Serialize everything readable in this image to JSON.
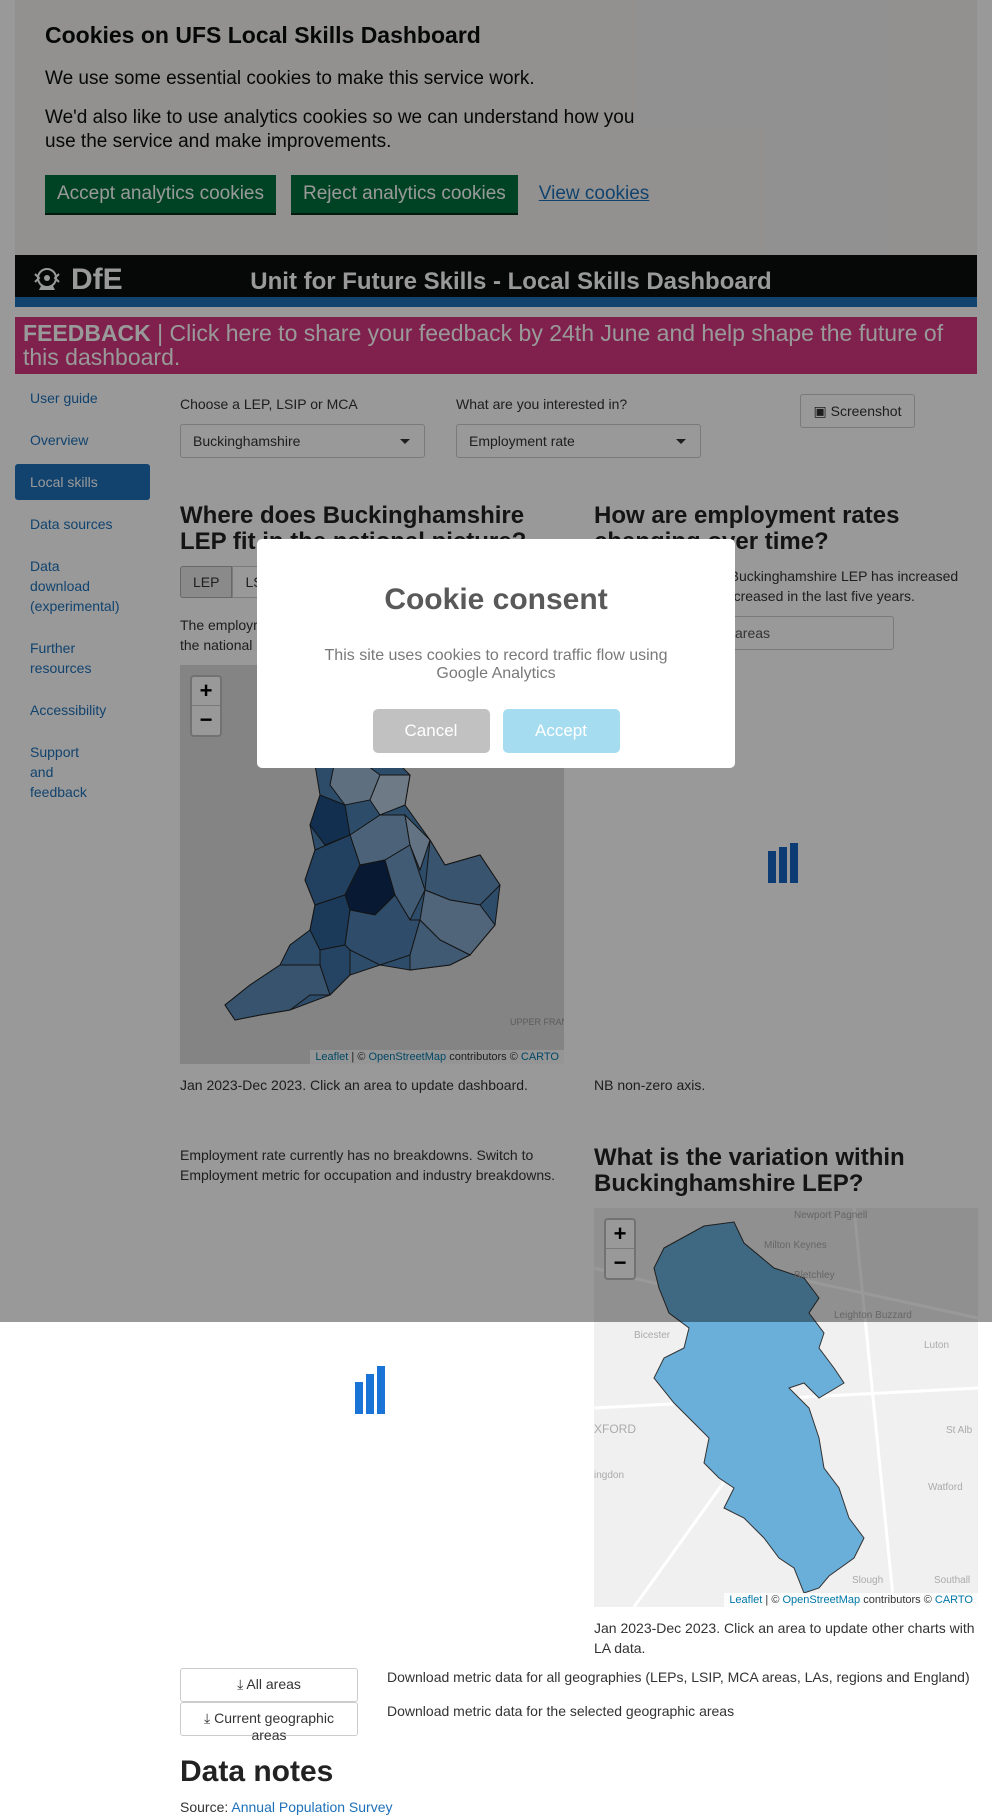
{
  "cookie_banner": {
    "title": "Cookies on UFS Local Skills Dashboard",
    "p1": "We use some essential cookies to make this service work.",
    "p2": "We'd also like to use analytics cookies so we can understand how you use the service and make improvements.",
    "accept": "Accept analytics cookies",
    "reject": "Reject analytics cookies",
    "view": "View cookies"
  },
  "header": {
    "logo": "DfE",
    "title": "Unit for Future Skills - Local Skills Dashboard"
  },
  "feedback": {
    "bold": "FEEDBACK",
    "text": " | Click here to share your feedback by 24th June and help shape the future of this dashboard."
  },
  "sidebar": {
    "items": [
      "User guide",
      "Overview",
      "Local skills",
      "Data sources",
      "Data download (experimental)",
      "Further resources",
      "Accessibility",
      "Support and feedback"
    ],
    "active": "Local skills"
  },
  "filters": {
    "geo_label": "Choose a LEP, LSIP or MCA",
    "geo_value": "Buckinghamshire",
    "metric_label": "What are you interested in?",
    "metric_value": "Employment rate",
    "screenshot": "Screenshot"
  },
  "national": {
    "title": "Where does Buckinghamshire LEP fit in the national picture?",
    "tab_lep": "LEP",
    "tab_ls": "LS",
    "text": "The employm... the national",
    "text_line1": "The employm",
    "text_line2": "the national",
    "caption": "Jan 2023-Dec 2023. Click an area to update dashboard."
  },
  "trend": {
    "title": "How are employment rates changing over time?",
    "text_line1": "n Buckinghamshire LEP has increased",
    "text_line2": "decreased in the last five years.",
    "input_value": "areas",
    "caption": "NB non-zero axis."
  },
  "breakdown": {
    "text": "Employment rate currently has no breakdowns. Switch to Employment metric for occupation and industry breakdowns."
  },
  "variation": {
    "title": "What is the variation within Buckinghamshire LEP?",
    "caption": "Jan 2023-Dec 2023. Click an area to update other charts with LA data.",
    "places": [
      "Newport Pagnell",
      "Milton Keynes",
      "Bletchley",
      "Bicester",
      "Leighton Buzzard",
      "Luton",
      "XFORD",
      "St Alb",
      "ingdon",
      "Watford",
      "Slough",
      "Southall"
    ]
  },
  "map": {
    "zoom_in": "+",
    "zoom_out": "−",
    "leaflet": "Leaflet",
    "sep": " | © ",
    "osm": "OpenStreetMap",
    "contrib": " contributors © ",
    "carto": "CARTO",
    "upper_france": "UPPER FRANCE"
  },
  "downloads": {
    "all_btn": "All areas",
    "all_desc": "Download metric data for all geographies (LEPs, LSIP, MCA areas, LAs, regions and England)",
    "current_btn": "Current geographic areas",
    "current_desc": "Download metric data for the selected geographic areas"
  },
  "notes": {
    "title": "Data notes",
    "source_label": "Source: ",
    "source_link": "Annual Population Survey"
  },
  "modal": {
    "title": "Cookie consent",
    "text": "This site uses cookies to record traffic flow using Google Analytics",
    "cancel": "Cancel",
    "accept": "Accept"
  }
}
